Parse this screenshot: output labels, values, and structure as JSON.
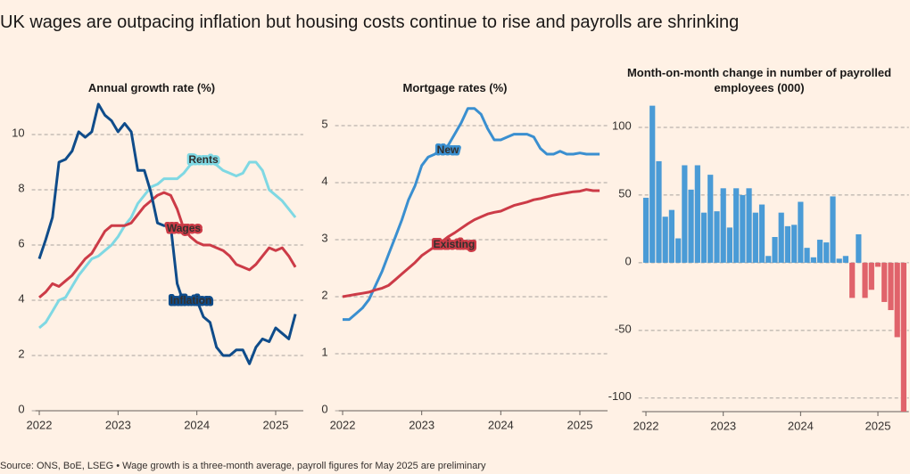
{
  "title": "UK wages are outpacing inflation but housing costs continue to rise and payrolls are shrinking",
  "source": "Source: ONS, BoE, LSEG • Wage growth is a three-month average, payroll figures for May 2025 are preliminary",
  "chart_data": [
    {
      "type": "line",
      "title": "Annual growth rate (%)",
      "x": [
        2022,
        2022.083,
        2022.167,
        2022.25,
        2022.333,
        2022.417,
        2022.5,
        2022.583,
        2022.667,
        2022.75,
        2022.833,
        2022.917,
        2023,
        2023.083,
        2023.167,
        2023.25,
        2023.333,
        2023.417,
        2023.5,
        2023.583,
        2023.667,
        2023.75,
        2023.833,
        2023.917,
        2024,
        2024.083,
        2024.167,
        2024.25,
        2024.333,
        2024.417,
        2024.5,
        2024.583,
        2024.667,
        2024.75,
        2024.833,
        2024.917,
        2025,
        2025.083,
        2025.167,
        2025.25
      ],
      "series": [
        {
          "name": "Rents",
          "color": "#7fd8e3",
          "values": [
            3.0,
            3.2,
            3.6,
            4.0,
            4.1,
            4.5,
            4.9,
            5.2,
            5.5,
            5.6,
            5.8,
            6.0,
            6.3,
            6.7,
            7.0,
            7.5,
            7.8,
            8.1,
            8.2,
            8.4,
            8.4,
            8.4,
            8.6,
            8.9,
            9.0,
            9.2,
            9.0,
            8.9,
            8.7,
            8.6,
            8.5,
            8.6,
            9.0,
            9.0,
            8.7,
            8.0,
            7.8,
            7.6,
            7.3,
            7.0
          ]
        },
        {
          "name": "Wages",
          "color": "#cc3b47",
          "values": [
            4.1,
            4.3,
            4.6,
            4.5,
            4.7,
            4.9,
            5.2,
            5.5,
            5.7,
            6.1,
            6.5,
            6.7,
            6.7,
            6.7,
            6.8,
            7.1,
            7.4,
            7.6,
            7.8,
            7.9,
            7.8,
            7.3,
            6.6,
            6.3,
            6.1,
            6.0,
            6.0,
            5.9,
            5.8,
            5.6,
            5.3,
            5.2,
            5.1,
            5.3,
            5.6,
            5.9,
            5.8,
            5.9,
            5.6,
            5.2
          ]
        },
        {
          "name": "Inflation",
          "color": "#0f4c8a",
          "values": [
            5.5,
            6.2,
            7.0,
            9.0,
            9.1,
            9.4,
            10.1,
            9.9,
            10.1,
            11.1,
            10.7,
            10.5,
            10.1,
            10.4,
            10.1,
            8.7,
            8.7,
            7.9,
            6.8,
            6.7,
            6.7,
            4.6,
            3.9,
            4.0,
            4.0,
            3.4,
            3.2,
            2.3,
            2.0,
            2.0,
            2.2,
            2.2,
            1.7,
            2.3,
            2.6,
            2.5,
            3.0,
            2.8,
            2.6,
            3.5
          ]
        }
      ],
      "xlim": [
        2021.95,
        2025.35
      ],
      "xticks": [
        2022,
        2023,
        2024,
        2025
      ],
      "ylim": [
        0,
        11.2
      ],
      "yticks": [
        0,
        2,
        4,
        6,
        8,
        10
      ],
      "grid": true
    },
    {
      "type": "line",
      "title": "Mortgage rates (%)",
      "x": [
        2022,
        2022.083,
        2022.167,
        2022.25,
        2022.333,
        2022.417,
        2022.5,
        2022.583,
        2022.667,
        2022.75,
        2022.833,
        2022.917,
        2023,
        2023.083,
        2023.167,
        2023.25,
        2023.333,
        2023.417,
        2023.5,
        2023.583,
        2023.667,
        2023.75,
        2023.833,
        2023.917,
        2024,
        2024.083,
        2024.167,
        2024.25,
        2024.333,
        2024.417,
        2024.5,
        2024.583,
        2024.667,
        2024.75,
        2024.833,
        2024.917,
        2025,
        2025.083,
        2025.167,
        2025.25
      ],
      "series": [
        {
          "name": "New",
          "color": "#3a8fd0",
          "values": [
            1.6,
            1.6,
            1.7,
            1.8,
            1.95,
            2.2,
            2.45,
            2.75,
            3.05,
            3.35,
            3.7,
            3.95,
            4.3,
            4.45,
            4.5,
            4.6,
            4.65,
            4.85,
            5.05,
            5.3,
            5.3,
            5.2,
            4.95,
            4.75,
            4.75,
            4.8,
            4.85,
            4.85,
            4.85,
            4.8,
            4.6,
            4.5,
            4.5,
            4.55,
            4.5,
            4.5,
            4.52,
            4.5,
            4.5,
            4.5
          ]
        },
        {
          "name": "Existing",
          "color": "#cc3b47",
          "values": [
            2.0,
            2.02,
            2.04,
            2.06,
            2.08,
            2.12,
            2.15,
            2.2,
            2.3,
            2.4,
            2.5,
            2.6,
            2.72,
            2.8,
            2.88,
            2.96,
            3.05,
            3.12,
            3.2,
            3.28,
            3.35,
            3.4,
            3.45,
            3.48,
            3.5,
            3.55,
            3.6,
            3.63,
            3.66,
            3.7,
            3.72,
            3.75,
            3.78,
            3.8,
            3.82,
            3.84,
            3.85,
            3.88,
            3.86,
            3.86
          ]
        }
      ],
      "xlim": [
        2021.95,
        2025.35
      ],
      "xticks": [
        2022,
        2023,
        2024,
        2025
      ],
      "ylim": [
        0,
        5.3
      ],
      "yticks": [
        0,
        1,
        2,
        3,
        4,
        5
      ],
      "grid": true
    },
    {
      "type": "bar",
      "title": "Month-on-month change in number of payrolled employees (000)",
      "x": [
        2022,
        2022.083,
        2022.167,
        2022.25,
        2022.333,
        2022.417,
        2022.5,
        2022.583,
        2022.667,
        2022.75,
        2022.833,
        2022.917,
        2023,
        2023.083,
        2023.167,
        2023.25,
        2023.333,
        2023.417,
        2023.5,
        2023.583,
        2023.667,
        2023.75,
        2023.833,
        2023.917,
        2024,
        2024.083,
        2024.167,
        2024.25,
        2024.333,
        2024.417,
        2024.5,
        2024.583,
        2024.667,
        2024.75,
        2024.833,
        2024.917,
        2025,
        2025.083,
        2025.167,
        2025.25,
        2025.333
      ],
      "values": [
        48,
        116,
        75,
        34,
        39,
        18,
        72,
        54,
        72,
        37,
        65,
        38,
        55,
        26,
        55,
        50,
        55,
        37,
        43,
        5,
        19,
        37,
        27,
        28,
        45,
        11,
        4,
        17,
        15,
        49,
        3,
        5,
        -26,
        21,
        -26,
        -20,
        -3,
        -29,
        -35,
        -55,
        -110
      ],
      "color": "#4a9bd6",
      "negative_color": "#e0636b",
      "xlim": [
        2021.95,
        2025.4
      ],
      "xticks": [
        2022,
        2023,
        2024,
        2025
      ],
      "ylim": [
        -110,
        123
      ],
      "yticks": [
        -100,
        -50,
        0,
        50,
        100
      ],
      "grid": true
    }
  ]
}
